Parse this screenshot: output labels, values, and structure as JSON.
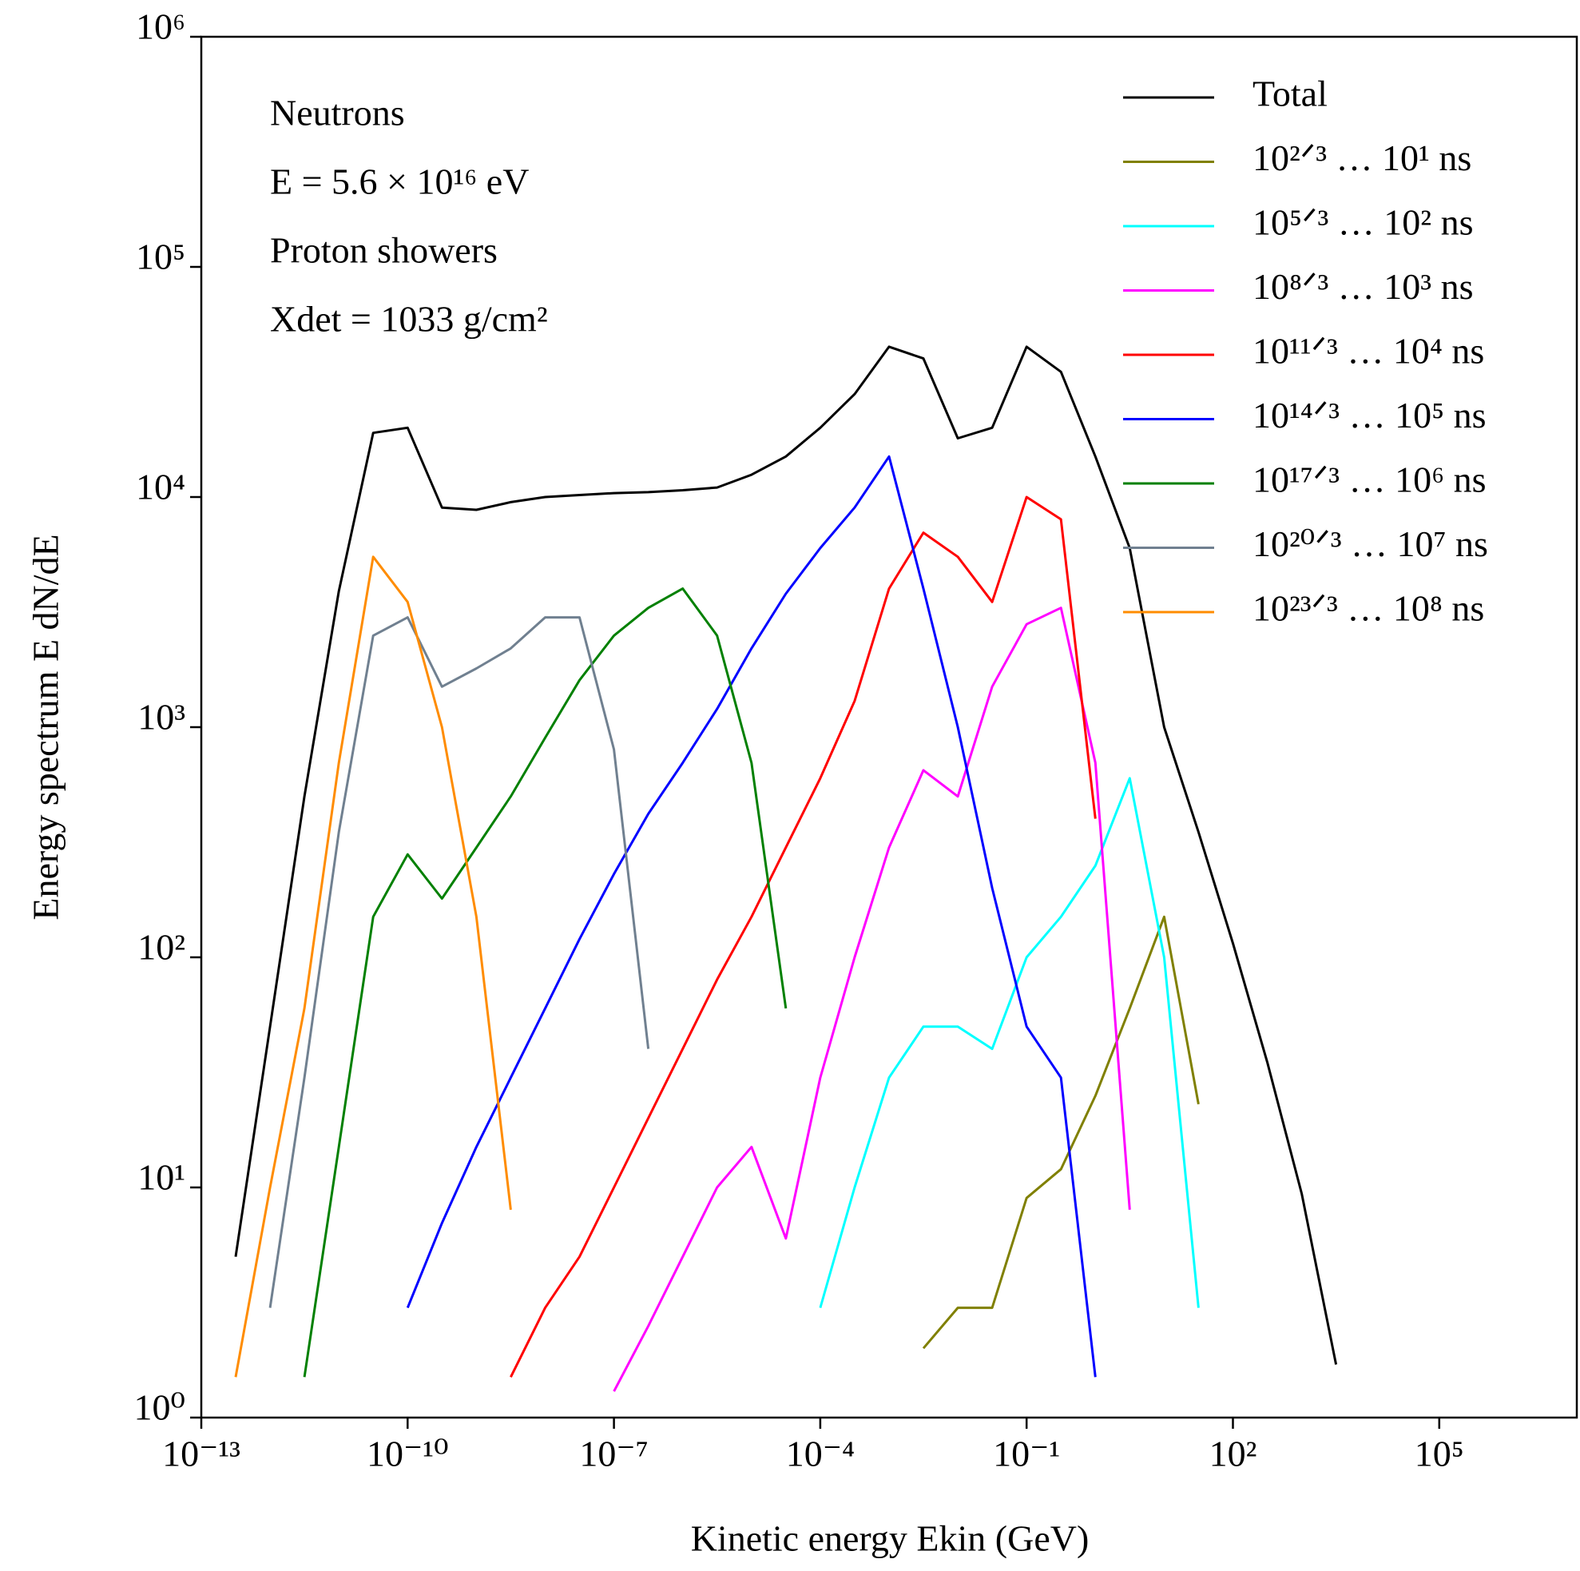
{
  "chart_data": {
    "type": "line",
    "xlabel": "Kinetic energy  Ekin  (GeV)",
    "ylabel": "Energy spectrum  E dN/dE",
    "annotations": [
      "Neutrons",
      "E = 5.6 × 10¹⁶ eV",
      "Proton showers",
      "Xdet = 1033 g/cm²"
    ],
    "xscale": "log",
    "yscale": "log",
    "xlim": [
      1e-13,
      10000000.0
    ],
    "ylim": [
      1,
      1000000
    ],
    "xticks": [
      {
        "value": 1e-13,
        "label": "10⁻¹³"
      },
      {
        "value": 1e-10,
        "label": "10⁻¹⁰"
      },
      {
        "value": 1e-07,
        "label": "10⁻⁷"
      },
      {
        "value": 0.0001,
        "label": "10⁻⁴"
      },
      {
        "value": 0.1,
        "label": "10⁻¹"
      },
      {
        "value": 100,
        "label": "10²"
      },
      {
        "value": 100000,
        "label": "10⁵"
      }
    ],
    "yticks": [
      {
        "value": 1,
        "label": "10⁰"
      },
      {
        "value": 10,
        "label": "10¹"
      },
      {
        "value": 100,
        "label": "10²"
      },
      {
        "value": 1000,
        "label": "10³"
      },
      {
        "value": 10000,
        "label": "10⁴"
      },
      {
        "value": 100000,
        "label": "10⁵"
      },
      {
        "value": 1000000,
        "label": "10⁶"
      }
    ],
    "legend": "upper right",
    "x": [
      3.16e-13,
      1e-12,
      3.16e-12,
      1e-11,
      3.16e-11,
      1e-10,
      3.16e-10,
      1e-09,
      3.16e-09,
      1e-08,
      3.16e-08,
      1e-07,
      3.16e-07,
      1e-06,
      3.16e-06,
      1e-05,
      3.16e-05,
      0.0001,
      0.000316,
      0.001,
      0.00316,
      0.01,
      0.0316,
      0.1,
      0.316,
      1,
      3.16,
      10,
      31.6,
      100,
      316,
      1000,
      3160,
      10000
    ],
    "series": [
      {
        "name": "Total",
        "color": "#000000",
        "values": [
          5,
          50,
          500,
          3900,
          19000,
          20000,
          9000,
          8800,
          9500,
          10000,
          10200,
          10400,
          10500,
          10700,
          11000,
          12500,
          15000,
          20000,
          28000,
          45000,
          40000,
          18000,
          20000,
          45000,
          35000,
          15000,
          6000,
          1000,
          350,
          115,
          35,
          9.4,
          1.7,
          null
        ]
      },
      {
        "name": "10²ᐟ³ … 10¹ ns",
        "color": "#808000",
        "values": [
          null,
          null,
          null,
          null,
          null,
          null,
          null,
          null,
          null,
          null,
          null,
          null,
          null,
          null,
          null,
          null,
          null,
          null,
          null,
          null,
          2,
          3,
          3,
          9,
          12,
          25,
          60,
          150,
          23,
          null,
          null,
          null,
          null,
          null
        ]
      },
      {
        "name": "10⁵ᐟ³ … 10² ns",
        "color": "#00ffff",
        "values": [
          null,
          null,
          null,
          null,
          null,
          null,
          null,
          null,
          null,
          null,
          null,
          null,
          null,
          null,
          null,
          null,
          null,
          3,
          10,
          30,
          50,
          50,
          40,
          100,
          150,
          250,
          600,
          100,
          3,
          null,
          null,
          null,
          null,
          null
        ]
      },
      {
        "name": "10⁸ᐟ³ … 10³ ns",
        "color": "#ff00ff",
        "values": [
          null,
          null,
          null,
          null,
          null,
          null,
          null,
          null,
          null,
          null,
          null,
          1.3,
          2.5,
          5,
          10,
          15,
          6,
          30,
          100,
          300,
          650,
          500,
          1500,
          2800,
          3300,
          700,
          8,
          null,
          null,
          null,
          null,
          null,
          null,
          null
        ]
      },
      {
        "name": "10¹¹ᐟ³ … 10⁴ ns",
        "color": "#ff0000",
        "values": [
          null,
          null,
          null,
          null,
          null,
          null,
          null,
          null,
          1.5,
          3,
          5,
          10,
          20,
          40,
          80,
          150,
          300,
          600,
          1300,
          4000,
          7000,
          5500,
          3500,
          10000,
          8000,
          400,
          null,
          null,
          null,
          null,
          null,
          null,
          null,
          null
        ]
      },
      {
        "name": "10¹⁴ᐟ³ … 10⁵ ns",
        "color": "#0000ff",
        "values": [
          null,
          null,
          null,
          null,
          null,
          3,
          7,
          15,
          30,
          60,
          120,
          230,
          420,
          700,
          1200,
          2200,
          3800,
          6000,
          9000,
          15000,
          4000,
          1000,
          200,
          50,
          30,
          1.5,
          null,
          null,
          null,
          null,
          null,
          null,
          null,
          null
        ]
      },
      {
        "name": "10¹⁷ᐟ³ … 10⁶ ns",
        "color": "#008000",
        "values": [
          null,
          null,
          1.5,
          15,
          150,
          280,
          180,
          300,
          500,
          900,
          1600,
          2500,
          3300,
          4000,
          2500,
          700,
          60,
          null,
          null,
          null,
          null,
          null,
          null,
          null,
          null,
          null,
          null,
          null,
          null,
          null,
          null,
          null,
          null,
          null
        ]
      },
      {
        "name": "10²⁰ᐟ³ … 10⁷ ns",
        "color": "#708090",
        "values": [
          null,
          3,
          30,
          350,
          2500,
          3000,
          1500,
          1800,
          2200,
          3000,
          3000,
          800,
          40,
          null,
          null,
          null,
          null,
          null,
          null,
          null,
          null,
          null,
          null,
          null,
          null,
          null,
          null,
          null,
          null,
          null,
          null,
          null,
          null,
          null
        ]
      },
      {
        "name": "10²³ᐟ³ … 10⁸ ns",
        "color": "#ff8c00",
        "values": [
          1.5,
          10,
          60,
          700,
          5500,
          3500,
          1000,
          150,
          8,
          null,
          null,
          null,
          null,
          null,
          null,
          null,
          null,
          null,
          null,
          null,
          null,
          null,
          null,
          null,
          null,
          null,
          null,
          null,
          null,
          null,
          null,
          null,
          null,
          null
        ]
      }
    ]
  }
}
